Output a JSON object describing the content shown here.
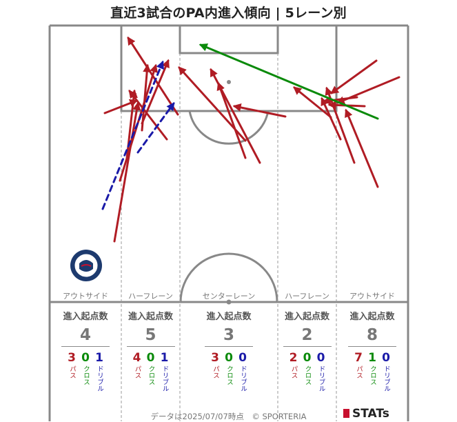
{
  "title": "直近3試合のPA内進入傾向 | 5レーン別",
  "footer": "データは2025/07/07時点　© SPORTERIA",
  "logo_text": "STATs",
  "badge_text": "KAGOSHIMA UNITED F.C.",
  "colors": {
    "pass": "#b01c24",
    "cross": "#0a8a0a",
    "dribble": "#1a1aa8",
    "pitch_line": "#888888"
  },
  "legend_labels": {
    "start_count": "進入起点数",
    "pass": "パス",
    "cross": "クロス",
    "dribble": "ドリブル"
  },
  "lanes": [
    {
      "name": "アウトサイド",
      "total": "4",
      "pass": "3",
      "cross": "0",
      "dribble": "1"
    },
    {
      "name": "ハーフレーン",
      "total": "5",
      "pass": "4",
      "cross": "0",
      "dribble": "1"
    },
    {
      "name": "センターレーン",
      "total": "3",
      "pass": "3",
      "cross": "0",
      "dribble": "0"
    },
    {
      "name": "ハーフレーン",
      "total": "2",
      "pass": "2",
      "cross": "0",
      "dribble": "0"
    },
    {
      "name": "アウトサイド",
      "total": "8",
      "pass": "7",
      "cross": "1",
      "dribble": "0"
    }
  ],
  "chart_data": {
    "type": "arrow_map",
    "title": "直近3試合のPA内進入傾向 | 5レーン別",
    "categories": [
      "アウトサイド",
      "ハーフレーン",
      "センターレーン",
      "ハーフレーン",
      "アウトサイド"
    ],
    "series": [
      {
        "name": "パス",
        "values": [
          3,
          4,
          3,
          2,
          7
        ]
      },
      {
        "name": "クロス",
        "values": [
          0,
          0,
          0,
          0,
          1
        ]
      },
      {
        "name": "ドリブル",
        "values": [
          1,
          1,
          0,
          0,
          0
        ]
      }
    ]
  }
}
